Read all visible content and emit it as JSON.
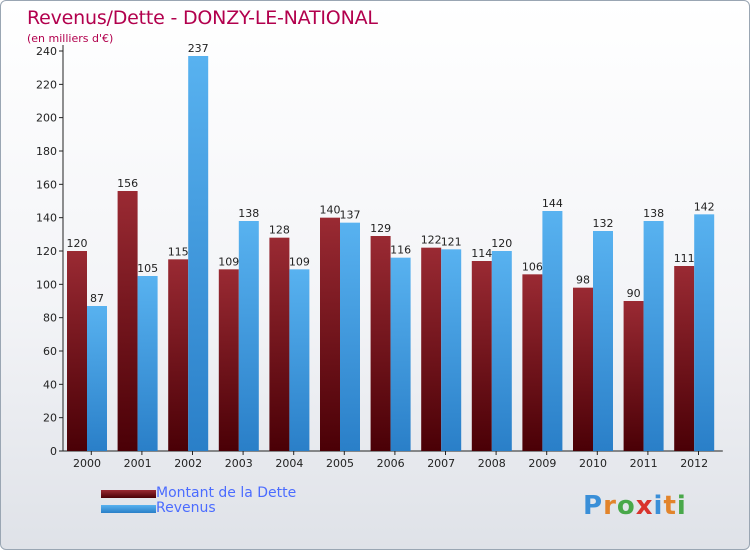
{
  "title": "Revenus/Dette - DONZY-LE-NATIONAL",
  "subtitle": "(en milliers d'€)",
  "logo": {
    "letters": [
      {
        "ch": "P",
        "color": "#3a8fd8"
      },
      {
        "ch": "r",
        "color": "#e2842b"
      },
      {
        "ch": "o",
        "color": "#49a84a"
      },
      {
        "ch": "x",
        "color": "#d9332d"
      },
      {
        "ch": "i",
        "color": "#3a8fd8"
      },
      {
        "ch": "t",
        "color": "#e2842b"
      },
      {
        "ch": "i",
        "color": "#49a84a"
      }
    ]
  },
  "chart_data": {
    "type": "bar",
    "categories": [
      "2000",
      "2001",
      "2002",
      "2003",
      "2004",
      "2005",
      "2006",
      "2007",
      "2008",
      "2009",
      "2010",
      "2011",
      "2012"
    ],
    "series": [
      {
        "name": "Montant de la Dette",
        "color": "#7a1118",
        "values": [
          120,
          156,
          115,
          109,
          128,
          140,
          129,
          122,
          114,
          106,
          98,
          90,
          111
        ]
      },
      {
        "name": "Revenus",
        "color": "#3d9ee6",
        "values": [
          87,
          105,
          237,
          138,
          109,
          137,
          116,
          121,
          120,
          144,
          132,
          138,
          142
        ]
      }
    ],
    "ylim": [
      0,
      240
    ],
    "yticks": [
      0,
      20,
      40,
      60,
      80,
      100,
      120,
      140,
      160,
      180,
      200,
      220,
      240
    ],
    "grid": false,
    "legend": "bottom-left"
  }
}
